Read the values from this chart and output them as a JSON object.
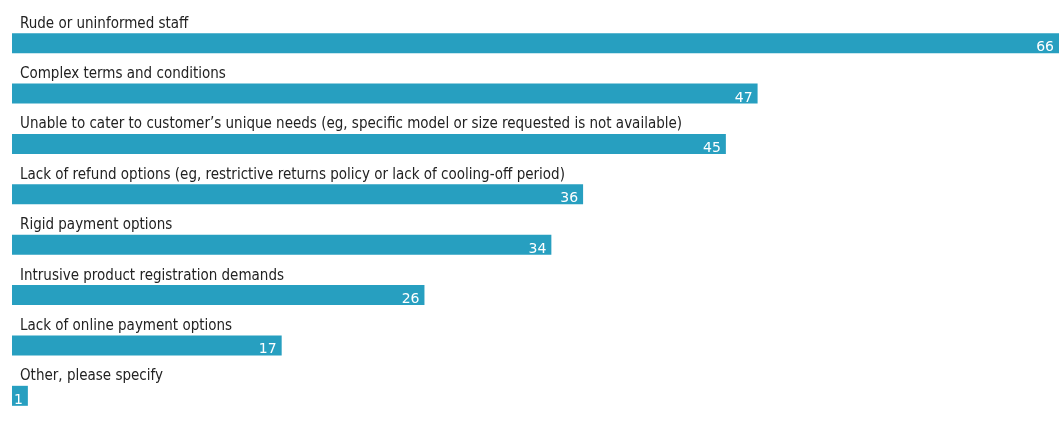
{
  "chart_data": {
    "type": "bar",
    "orientation": "horizontal",
    "data_labels": true,
    "color": "#279fc0",
    "categories": [
      "Rude or uninformed staff",
      "Complex terms and conditions",
      "Unable to cater to customer’s unique needs (eg, specific model or size requested is not available)",
      "Lack of refund options (eg, restrictive returns policy or lack of cooling-off period)",
      "Rigid payment options",
      "Intrusive product registration demands",
      "Lack of online payment options",
      "Other, please specify"
    ],
    "values": [
      66,
      47,
      45,
      36,
      34,
      26,
      17,
      1
    ]
  }
}
